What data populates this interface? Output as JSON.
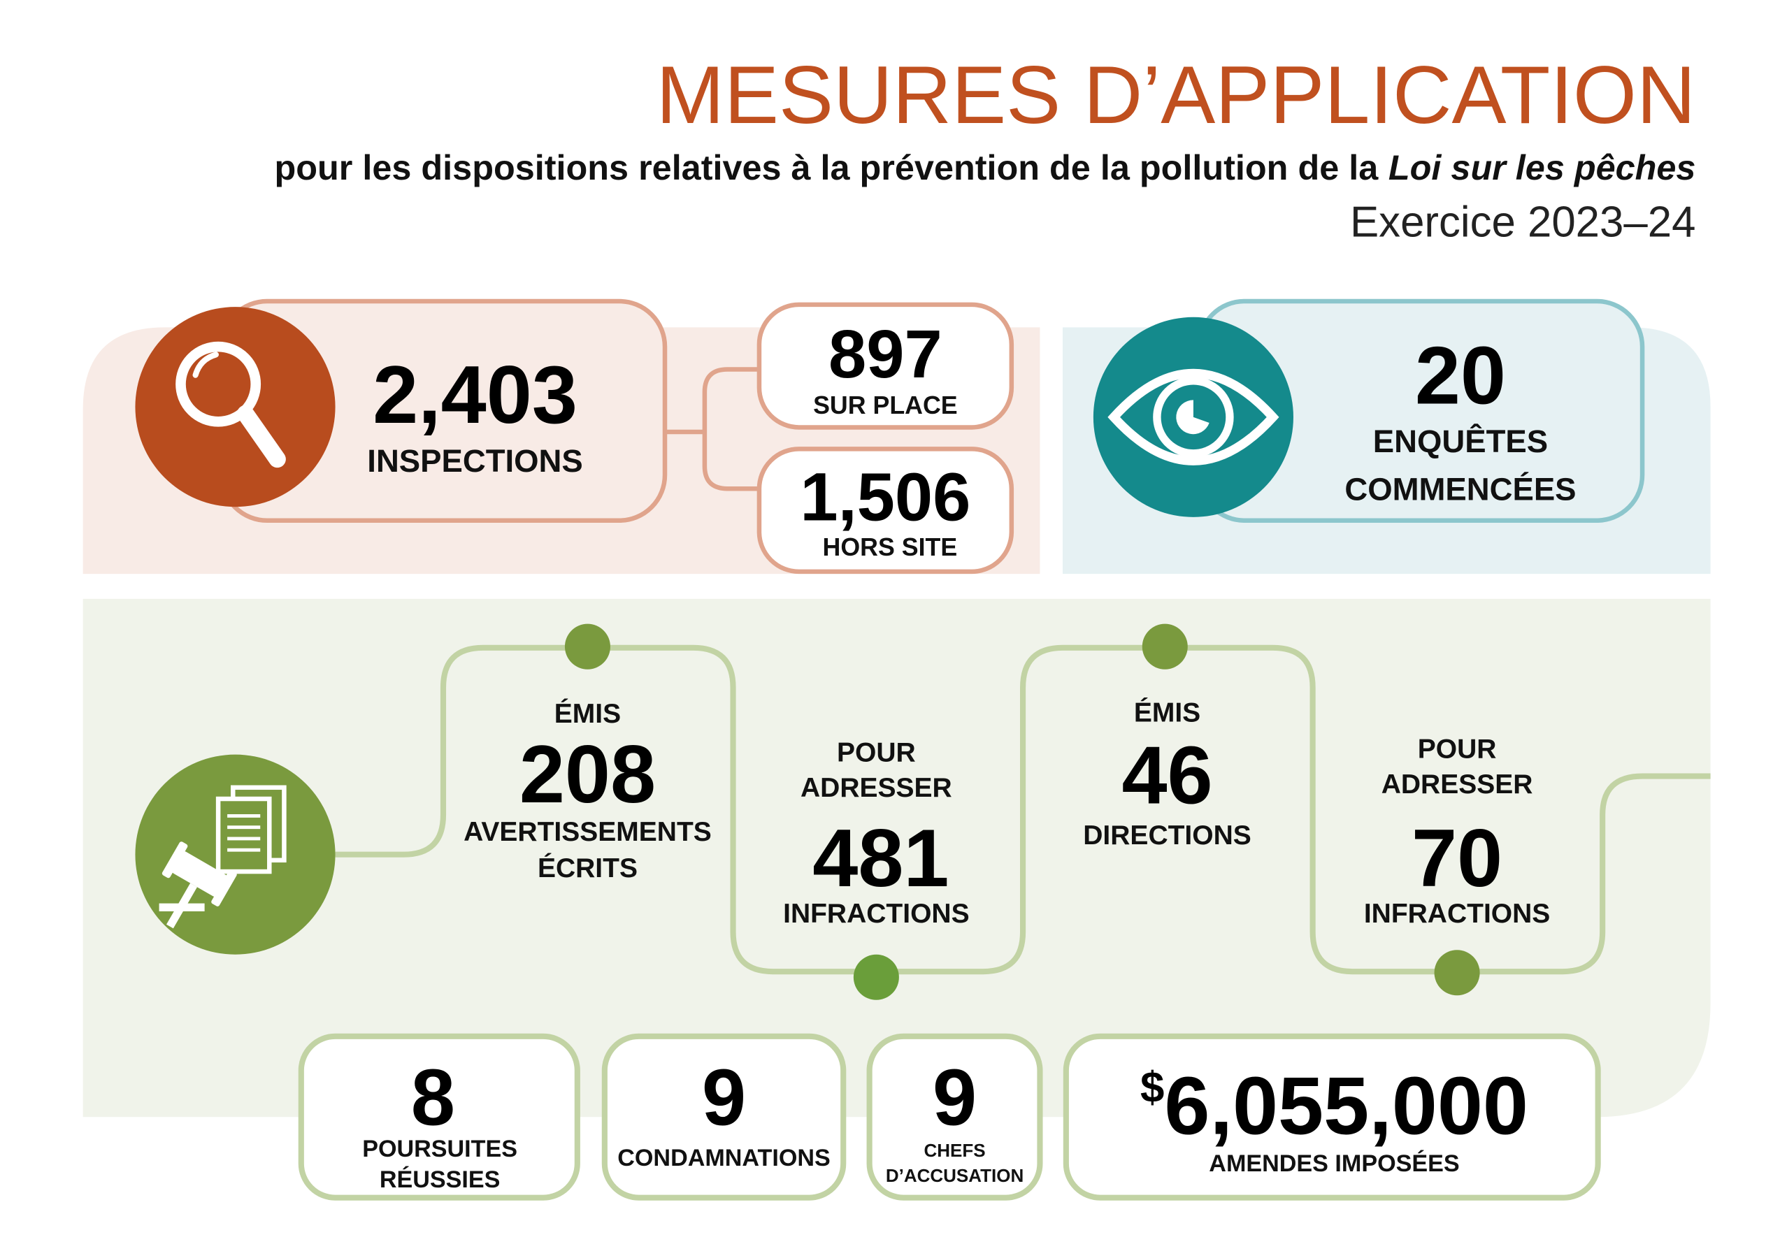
{
  "header": {
    "title": "MESURES D’APPLICATION",
    "subtitle": "pour les dispositions relatives à la prévention de la pollution de la",
    "subtitle_italic": "Loi sur les pêches",
    "period": "Exercice 2023–24"
  },
  "inspections": {
    "total": {
      "value": "2,403",
      "label": "INSPECTIONS"
    },
    "on_site": {
      "value": "897",
      "label": "SUR PLACE"
    },
    "off_site": {
      "value": "1,506",
      "label": "HORS SITE"
    }
  },
  "investigations": {
    "value": "20",
    "label_lines": [
      "ENQUÊTES",
      "COMMENCÉES"
    ]
  },
  "warnings": {
    "prefix": "ÉMIS",
    "value": "208",
    "label_lines": [
      "AVERTISSEMENTS",
      "ÉCRITS"
    ]
  },
  "warning_infractions": {
    "prefix_lines": [
      "POUR",
      "ADRESSER"
    ],
    "value": "481",
    "label": "INFRACTIONS"
  },
  "directions": {
    "prefix": "ÉMIS",
    "value": "46",
    "label": "DIRECTIONS"
  },
  "direction_infractions": {
    "prefix_lines": [
      "POUR",
      "ADRESSER"
    ],
    "value": "70",
    "label": "INFRACTIONS"
  },
  "outcomes": [
    {
      "value": "8",
      "label_lines": [
        "POURSUITES",
        "RÉUSSIES"
      ]
    },
    {
      "value": "9",
      "label_lines": [
        "CONDAMNATIONS"
      ]
    },
    {
      "value": "9",
      "label_lines": [
        "CHEFS",
        "D’ACCUSATION"
      ]
    },
    {
      "currency": "$",
      "value": "6,055,000",
      "label_lines": [
        "AMENDES IMPOSÉES"
      ]
    }
  ]
}
